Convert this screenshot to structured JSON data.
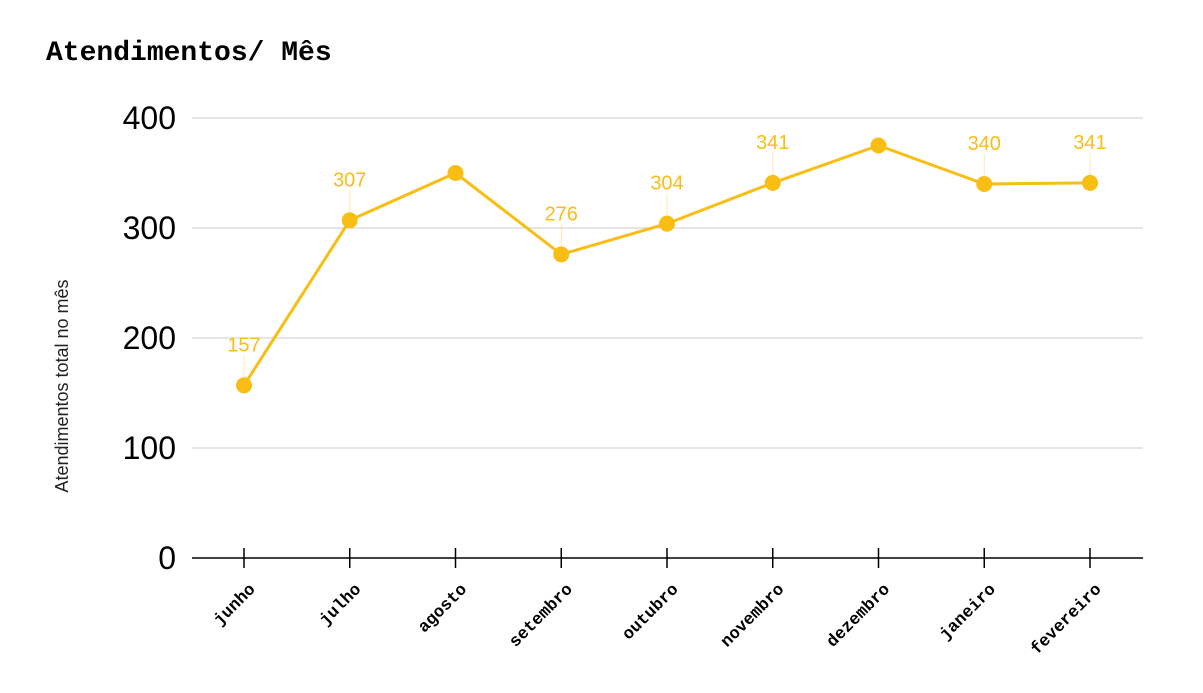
{
  "chart_data": {
    "type": "line",
    "title": "Atendimentos/ Mês",
    "xlabel": "",
    "ylabel": "Atendimentos total no mês",
    "categories": [
      "junho",
      "julho",
      "agosto",
      "setembro",
      "outubro",
      "novembro",
      "dezembro",
      "janeiro",
      "fevereiro"
    ],
    "series": [
      {
        "values": [
          157,
          307,
          350,
          276,
          304,
          341,
          375,
          340,
          341
        ],
        "data_labels": [
          "157",
          "307",
          "",
          "276",
          "304",
          "341",
          "",
          "340",
          "341"
        ],
        "color": "#F9BE14"
      }
    ],
    "ylim": [
      0,
      400
    ],
    "yticks": [
      0,
      100,
      200,
      300,
      400
    ],
    "grid": true,
    "legend": "none"
  }
}
